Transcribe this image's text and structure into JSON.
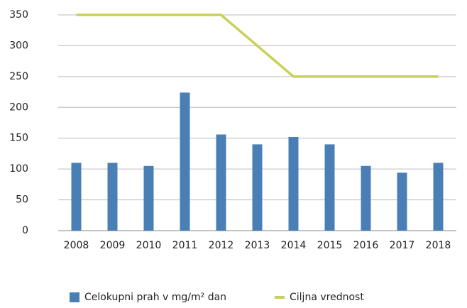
{
  "chart_data": {
    "type": "bar",
    "categories": [
      "2008",
      "2009",
      "2010",
      "2011",
      "2012",
      "2013",
      "2014",
      "2015",
      "2016",
      "2017",
      "2018"
    ],
    "series": [
      {
        "name": "Celokupni prah v mg/m² dan",
        "type": "bar",
        "color": "#4a7fb5",
        "values": [
          110,
          110,
          105,
          224,
          156,
          140,
          152,
          140,
          105,
          94,
          110
        ]
      },
      {
        "name": "Ciljna vrednost",
        "type": "line",
        "color": "#c8d05a",
        "values": [
          350,
          350,
          350,
          350,
          350,
          300,
          250,
          250,
          250,
          250,
          250
        ]
      }
    ],
    "ylim": [
      0,
      350
    ],
    "yticks": [
      0,
      50,
      100,
      150,
      200,
      250,
      300,
      350
    ],
    "grid": true,
    "legend": "bottom"
  }
}
